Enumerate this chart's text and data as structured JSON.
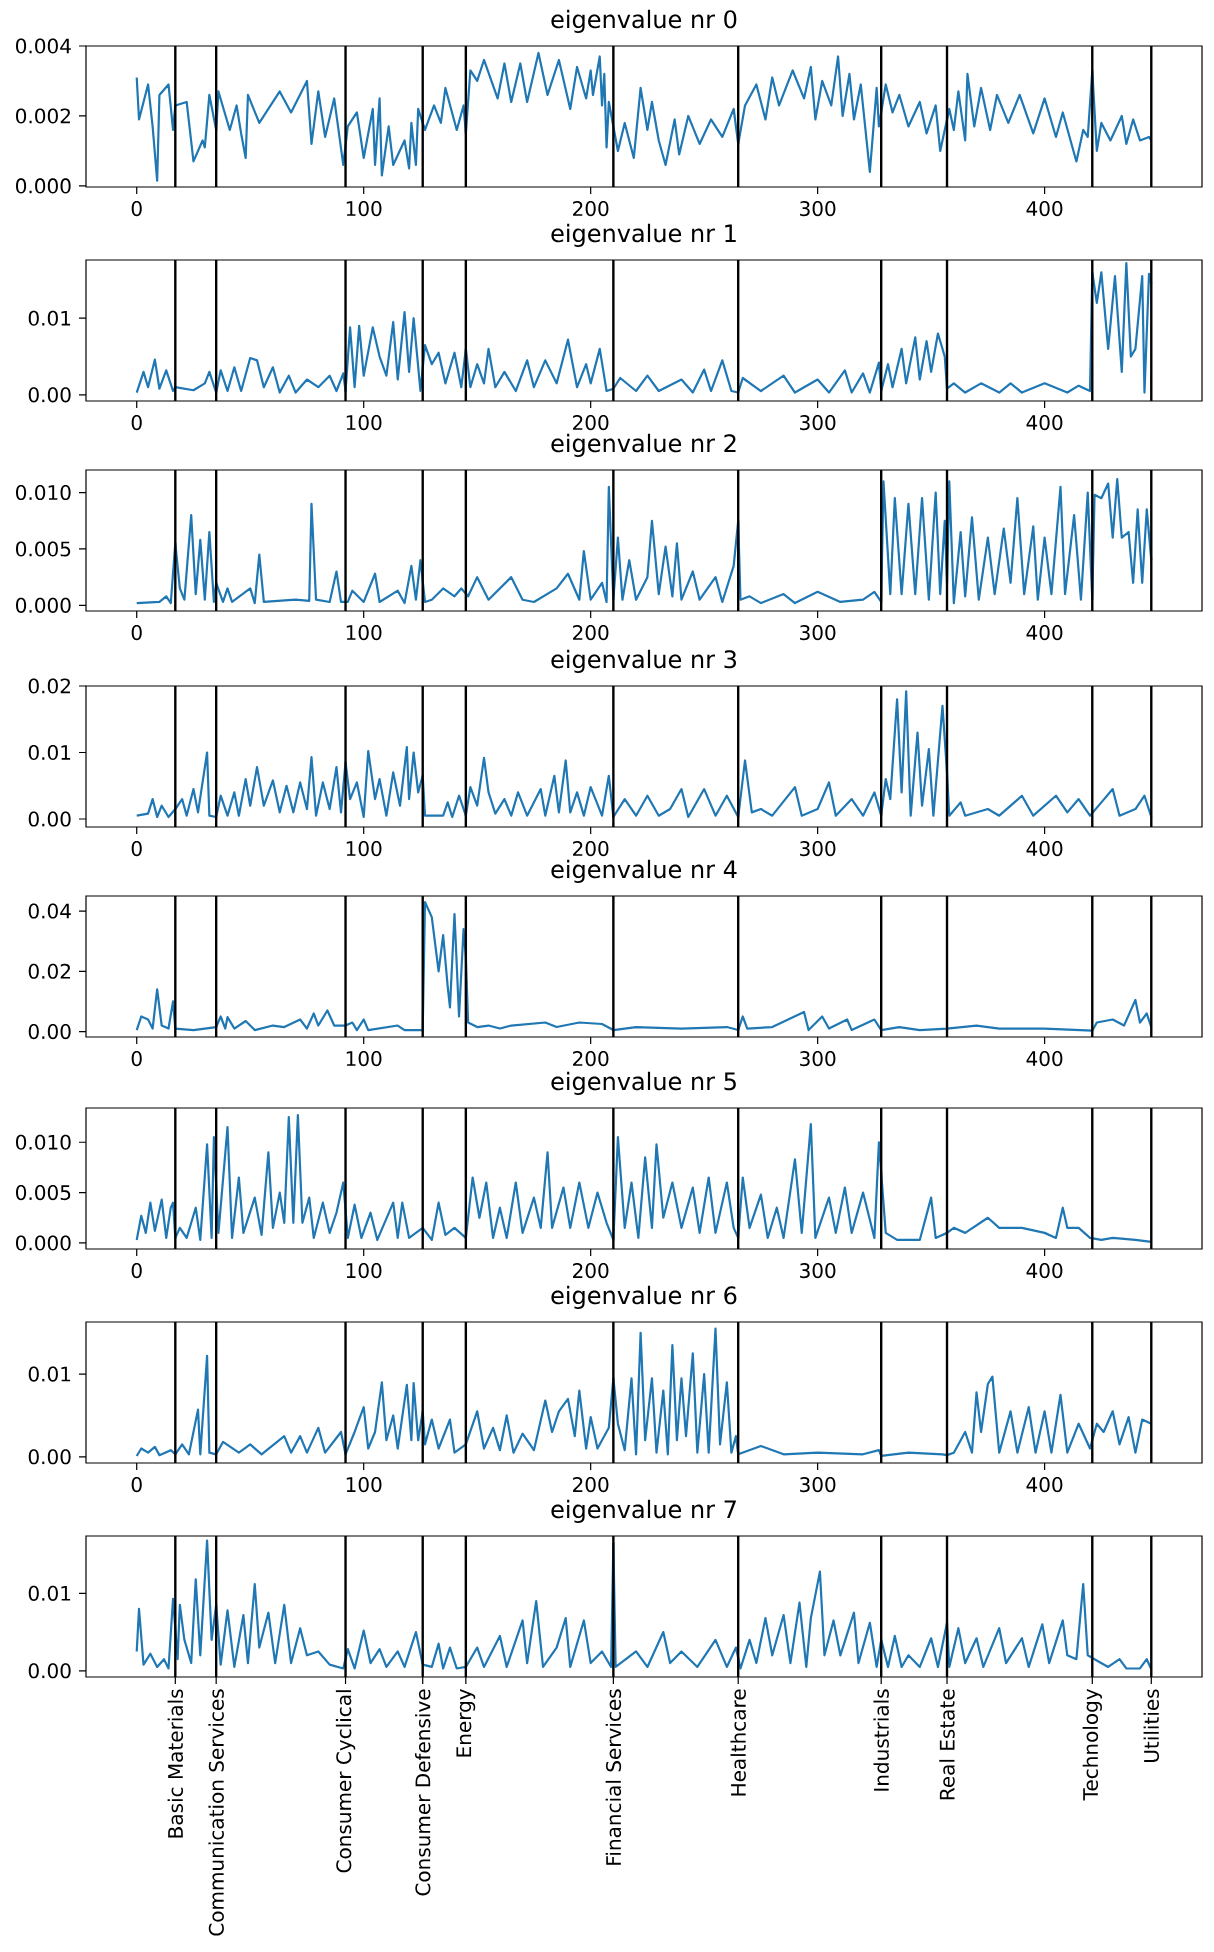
{
  "chart_data": [
    {
      "type": "line",
      "title": "eigenvalue nr 0",
      "color": "#1f77b4",
      "xlim": [
        -22.35,
        469.35
      ],
      "xticks": [
        0,
        100,
        200,
        300,
        400
      ],
      "ylim": [
        -3e-05,
        0.004
      ],
      "yticks": [
        {
          "value": 0,
          "label": "0.000"
        },
        0.002,
        0.004
      ],
      "x": [
        0,
        1,
        5,
        7,
        9,
        10,
        14,
        16,
        17,
        22,
        25,
        29,
        30,
        32,
        35,
        36,
        41,
        44,
        46,
        48,
        49,
        54,
        63,
        68,
        75,
        77,
        80,
        83,
        87,
        91,
        93,
        97,
        100,
        104,
        105,
        107,
        108,
        111,
        113,
        118,
        120,
        121,
        123,
        124,
        127,
        131,
        134,
        136,
        141,
        144,
        145,
        147,
        150,
        153,
        159,
        162,
        165,
        169,
        172,
        177,
        181,
        186,
        191,
        194,
        198,
        200,
        201,
        204,
        205,
        206,
        207,
        208,
        210,
        212,
        215,
        219,
        222,
        225,
        227,
        230,
        233,
        237,
        239,
        243,
        248,
        253,
        258,
        263,
        265,
        268,
        273,
        277,
        280,
        283,
        289,
        294,
        297,
        299,
        302,
        306,
        309,
        311,
        314,
        316,
        319,
        323,
        326,
        327,
        330,
        333,
        336,
        340,
        345,
        348,
        352,
        354,
        358,
        360,
        362,
        365,
        366,
        369,
        372,
        376,
        379,
        384,
        389,
        395,
        400,
        405,
        408,
        414,
        417,
        419,
        421,
        423,
        425,
        429,
        434,
        436,
        439,
        442,
        446,
        447
      ],
      "values": [
        0.0031,
        0.0019,
        0.0029,
        0.0017,
        0.00015,
        0.0026,
        0.0029,
        0.0016,
        0.0023,
        0.0024,
        0.0007,
        0.0013,
        0.0011,
        0.0026,
        0.0016,
        0.0027,
        0.0016,
        0.0023,
        0.0015,
        0.0008,
        0.0026,
        0.0018,
        0.0027,
        0.0021,
        0.003,
        0.0012,
        0.0027,
        0.0014,
        0.0025,
        0.0006,
        0.0017,
        0.0021,
        0.0008,
        0.0022,
        0.0006,
        0.0025,
        0.0003,
        0.0017,
        0.0006,
        0.0013,
        0.0005,
        0.0018,
        0.0006,
        0.0022,
        0.0016,
        0.0023,
        0.0018,
        0.0028,
        0.0016,
        0.0023,
        0.0015,
        0.0033,
        0.003,
        0.0036,
        0.0025,
        0.0035,
        0.0024,
        0.0035,
        0.0024,
        0.0038,
        0.0026,
        0.0036,
        0.0022,
        0.0034,
        0.0025,
        0.0033,
        0.0026,
        0.0037,
        0.0023,
        0.0032,
        0.0011,
        0.0024,
        0.0017,
        0.001,
        0.0018,
        0.0008,
        0.0028,
        0.0016,
        0.0024,
        0.0013,
        0.0006,
        0.0019,
        0.0009,
        0.002,
        0.0012,
        0.0019,
        0.0014,
        0.0022,
        0.0012,
        0.0023,
        0.0029,
        0.0019,
        0.0031,
        0.0023,
        0.0033,
        0.0025,
        0.0034,
        0.0019,
        0.003,
        0.0023,
        0.0037,
        0.002,
        0.0032,
        0.0019,
        0.0029,
        0.0004,
        0.0028,
        0.0017,
        0.0029,
        0.0021,
        0.0026,
        0.0017,
        0.0024,
        0.0015,
        0.0023,
        0.001,
        0.0022,
        0.0016,
        0.0027,
        0.0013,
        0.0032,
        0.0017,
        0.0028,
        0.0016,
        0.0026,
        0.0018,
        0.0026,
        0.0015,
        0.0025,
        0.0014,
        0.0021,
        0.0007,
        0.0016,
        0.0014,
        0.0033,
        0.001,
        0.0018,
        0.0013,
        0.002,
        0.0012,
        0.0019,
        0.0013,
        0.0014,
        0.0013
      ],
      "ref_lines": [
        {
          "axis": "x",
          "value": 17
        },
        {
          "axis": "x",
          "value": 35
        },
        {
          "axis": "x",
          "value": 92
        },
        {
          "axis": "x",
          "value": 126
        },
        {
          "axis": "x",
          "value": 145
        },
        {
          "axis": "x",
          "value": 210
        },
        {
          "axis": "x",
          "value": 265
        },
        {
          "axis": "x",
          "value": 328
        },
        {
          "axis": "x",
          "value": 357
        },
        {
          "axis": "x",
          "value": 421
        },
        {
          "axis": "x",
          "value": 447
        }
      ]
    },
    {
      "type": "line",
      "title": "eigenvalue nr 1",
      "color": "#1f77b4",
      "xlim": [
        -22.35,
        469.35
      ],
      "xticks": [
        0,
        100,
        200,
        300,
        400
      ],
      "ylim": [
        -0.0008,
        0.0176
      ],
      "yticks": [
        {
          "value": 0,
          "label": "0.00"
        },
        0.01
      ],
      "x": [
        0,
        3,
        5,
        8,
        10,
        13,
        16,
        17,
        25,
        30,
        32,
        35,
        37,
        40,
        43,
        46,
        50,
        53,
        56,
        60,
        63,
        67,
        70,
        75,
        80,
        85,
        88,
        91,
        92,
        94,
        96,
        98,
        100,
        104,
        107,
        110,
        113,
        115,
        118,
        120,
        122,
        125,
        127,
        130,
        133,
        136,
        140,
        143,
        145,
        147,
        150,
        153,
        155,
        158,
        162,
        167,
        172,
        175,
        180,
        185,
        190,
        194,
        198,
        200,
        204,
        207,
        210,
        213,
        220,
        225,
        230,
        240,
        245,
        250,
        253,
        258,
        262,
        265,
        267,
        275,
        285,
        290,
        300,
        305,
        312,
        315,
        320,
        323,
        327,
        328,
        331,
        333,
        337,
        339,
        343,
        345,
        348,
        350,
        353,
        356,
        357,
        360,
        365,
        372,
        380,
        385,
        390,
        400,
        410,
        415,
        420,
        421,
        423,
        425,
        428,
        431,
        434,
        436,
        438,
        440,
        443,
        444,
        446,
        447
      ],
      "values": [
        0.0003,
        0.003,
        0.001,
        0.0046,
        0.0008,
        0.0032,
        0.0005,
        0.001,
        0.0006,
        0.0015,
        0.003,
        0.0003,
        0.0032,
        0.0005,
        0.0036,
        0.0005,
        0.0048,
        0.0045,
        0.001,
        0.0036,
        0.0003,
        0.0025,
        0.0003,
        0.002,
        0.001,
        0.0025,
        0.0005,
        0.0028,
        0.0005,
        0.0088,
        0.001,
        0.009,
        0.0025,
        0.0088,
        0.005,
        0.0025,
        0.0095,
        0.002,
        0.0108,
        0.003,
        0.01,
        0.0005,
        0.0065,
        0.004,
        0.0055,
        0.0015,
        0.0055,
        0.001,
        0.006,
        0.001,
        0.004,
        0.0015,
        0.006,
        0.001,
        0.003,
        0.0005,
        0.0045,
        0.001,
        0.0045,
        0.0015,
        0.0072,
        0.001,
        0.004,
        0.0015,
        0.006,
        0.0005,
        0.0008,
        0.0022,
        0.0005,
        0.0025,
        0.0005,
        0.002,
        0.0003,
        0.0033,
        0.0005,
        0.0045,
        0.0005,
        0.0003,
        0.0022,
        0.0005,
        0.0025,
        0.0003,
        0.002,
        0.0003,
        0.0032,
        0.0003,
        0.0028,
        0.0003,
        0.0042,
        0.0005,
        0.004,
        0.001,
        0.006,
        0.0015,
        0.0075,
        0.002,
        0.007,
        0.003,
        0.008,
        0.005,
        0.0008,
        0.0015,
        0.0003,
        0.0015,
        0.0003,
        0.0015,
        0.0003,
        0.0015,
        0.0003,
        0.0012,
        0.0005,
        0.016,
        0.012,
        0.016,
        0.006,
        0.0155,
        0.003,
        0.0172,
        0.005,
        0.006,
        0.0155,
        0.0003,
        0.0158,
        0.0145
      ],
      "ref_lines": [
        {
          "axis": "x",
          "value": 17
        },
        {
          "axis": "x",
          "value": 35
        },
        {
          "axis": "x",
          "value": 92
        },
        {
          "axis": "x",
          "value": 126
        },
        {
          "axis": "x",
          "value": 145
        },
        {
          "axis": "x",
          "value": 210
        },
        {
          "axis": "x",
          "value": 265
        },
        {
          "axis": "x",
          "value": 328
        },
        {
          "axis": "x",
          "value": 357
        },
        {
          "axis": "x",
          "value": 421
        },
        {
          "axis": "x",
          "value": 447
        }
      ]
    },
    {
      "type": "line",
      "title": "eigenvalue nr 2",
      "color": "#1f77b4",
      "xlim": [
        -22.35,
        469.35
      ],
      "xticks": [
        0,
        100,
        200,
        300,
        400
      ],
      "ylim": [
        -0.0005,
        0.012
      ],
      "yticks": [
        {
          "value": 0,
          "label": "0.000"
        },
        0.005,
        {
          "value": 0.01,
          "label": "0.010"
        }
      ],
      "x": [
        0,
        10,
        13,
        15,
        17,
        19,
        21,
        24,
        26,
        28,
        30,
        32,
        34,
        35,
        38,
        40,
        42,
        50,
        52,
        54,
        56,
        70,
        76,
        77,
        79,
        85,
        88,
        90,
        93,
        95,
        100,
        105,
        107,
        115,
        118,
        121,
        123,
        125,
        127,
        130,
        135,
        140,
        143,
        146,
        150,
        155,
        160,
        165,
        170,
        175,
        185,
        190,
        195,
        197,
        200,
        205,
        207,
        208,
        210,
        212,
        214,
        217,
        220,
        225,
        227,
        230,
        233,
        236,
        238,
        240,
        245,
        248,
        255,
        258,
        263,
        265,
        266,
        270,
        275,
        285,
        290,
        300,
        310,
        320,
        325,
        328,
        329,
        332,
        334,
        337,
        340,
        343,
        346,
        349,
        352,
        354,
        356,
        357,
        358,
        360,
        363,
        365,
        368,
        371,
        375,
        378,
        382,
        385,
        388,
        391,
        395,
        397,
        400,
        403,
        407,
        409,
        413,
        416,
        419,
        421,
        422,
        425,
        428,
        430,
        432,
        434,
        437,
        439,
        441,
        443,
        445,
        447
      ],
      "values": [
        0.0002,
        0.0003,
        0.0008,
        0.0002,
        0.0055,
        0.0015,
        0.0005,
        0.008,
        0.001,
        0.0058,
        0.0005,
        0.0065,
        0.0003,
        0.002,
        0.0003,
        0.0015,
        0.0003,
        0.0015,
        0.0002,
        0.0045,
        0.0003,
        0.0005,
        0.0004,
        0.009,
        0.0005,
        0.0003,
        0.003,
        0.0003,
        0.0003,
        0.0013,
        0.0003,
        0.0028,
        0.0003,
        0.0013,
        0.0002,
        0.0035,
        0.0005,
        0.004,
        0.0003,
        0.0005,
        0.0015,
        0.0008,
        0.0015,
        0.0008,
        0.0025,
        0.0005,
        0.0015,
        0.0025,
        0.0005,
        0.0003,
        0.0015,
        0.0028,
        0.0005,
        0.0048,
        0.0005,
        0.002,
        0.0003,
        0.0105,
        0.0005,
        0.006,
        0.0005,
        0.004,
        0.0005,
        0.0025,
        0.0075,
        0.001,
        0.0052,
        0.0008,
        0.0055,
        0.0005,
        0.003,
        0.0005,
        0.0025,
        0.0003,
        0.0035,
        0.0075,
        0.0005,
        0.0008,
        0.0002,
        0.001,
        0.0002,
        0.0012,
        0.0003,
        0.0005,
        0.0012,
        0.0003,
        0.011,
        0.001,
        0.0095,
        0.001,
        0.009,
        0.001,
        0.0095,
        0.0005,
        0.01,
        0.001,
        0.0075,
        0.002,
        0.011,
        0.0002,
        0.0065,
        0.0008,
        0.0078,
        0.0005,
        0.006,
        0.001,
        0.0068,
        0.002,
        0.0095,
        0.001,
        0.007,
        0.0005,
        0.006,
        0.001,
        0.0105,
        0.001,
        0.008,
        0.0005,
        0.01,
        0.0005,
        0.0098,
        0.0095,
        0.0108,
        0.006,
        0.0112,
        0.006,
        0.0065,
        0.002,
        0.0085,
        0.002,
        0.0085,
        0.004
      ],
      "ref_lines": [
        {
          "axis": "x",
          "value": 17
        },
        {
          "axis": "x",
          "value": 35
        },
        {
          "axis": "x",
          "value": 92
        },
        {
          "axis": "x",
          "value": 126
        },
        {
          "axis": "x",
          "value": 145
        },
        {
          "axis": "x",
          "value": 210
        },
        {
          "axis": "x",
          "value": 265
        },
        {
          "axis": "x",
          "value": 328
        },
        {
          "axis": "x",
          "value": 357
        },
        {
          "axis": "x",
          "value": 421
        },
        {
          "axis": "x",
          "value": 447
        }
      ]
    },
    {
      "type": "line",
      "title": "eigenvalue nr 3",
      "color": "#1f77b4",
      "xlim": [
        -22.35,
        469.35
      ],
      "xticks": [
        0,
        100,
        200,
        300,
        400
      ],
      "ylim": [
        -0.0012,
        0.02
      ],
      "yticks": [
        {
          "value": 0,
          "label": "0.00"
        },
        0.01,
        {
          "value": 0.02,
          "label": "0.02"
        }
      ],
      "x": [
        0,
        5,
        7,
        9,
        11,
        14,
        17,
        20,
        22,
        25,
        27,
        31,
        32,
        35,
        37,
        40,
        43,
        45,
        48,
        50,
        53,
        56,
        60,
        63,
        66,
        69,
        72,
        75,
        77,
        79,
        82,
        85,
        88,
        90,
        92,
        94,
        97,
        100,
        102,
        105,
        107,
        110,
        113,
        116,
        119,
        120,
        122,
        124,
        126,
        127,
        135,
        137,
        139,
        142,
        145,
        147,
        150,
        153,
        155,
        158,
        162,
        165,
        168,
        172,
        178,
        180,
        184,
        186,
        189,
        191,
        194,
        197,
        200,
        205,
        208,
        210,
        215,
        220,
        225,
        230,
        235,
        240,
        243,
        250,
        255,
        260,
        265,
        268,
        271,
        275,
        280,
        290,
        293,
        300,
        305,
        308,
        315,
        320,
        325,
        328,
        330,
        332,
        335,
        337,
        339,
        341,
        344,
        346,
        349,
        351,
        355,
        357,
        358,
        363,
        365,
        375,
        380,
        390,
        395,
        405,
        410,
        415,
        420,
        425,
        430,
        433,
        440,
        444,
        447
      ],
      "values": [
        0.0005,
        0.0008,
        0.003,
        0.0003,
        0.002,
        0.0003,
        0.0015,
        0.003,
        0.0005,
        0.0045,
        0.001,
        0.01,
        0.0005,
        0.0003,
        0.0035,
        0.0005,
        0.004,
        0.0005,
        0.006,
        0.002,
        0.0078,
        0.002,
        0.0058,
        0.001,
        0.005,
        0.001,
        0.0055,
        0.0015,
        0.0093,
        0.0005,
        0.0055,
        0.0015,
        0.0078,
        0.001,
        0.0085,
        0.003,
        0.0055,
        0.0003,
        0.0102,
        0.003,
        0.006,
        0.0005,
        0.007,
        0.002,
        0.0108,
        0.003,
        0.01,
        0.004,
        0.0065,
        0.0005,
        0.0005,
        0.0025,
        0.0003,
        0.0035,
        0.0005,
        0.0048,
        0.002,
        0.0092,
        0.004,
        0.0008,
        0.003,
        0.0005,
        0.004,
        0.0005,
        0.0045,
        0.0005,
        0.0065,
        0.001,
        0.0088,
        0.001,
        0.004,
        0.0005,
        0.0048,
        0.0005,
        0.0065,
        0.0003,
        0.003,
        0.0005,
        0.0035,
        0.0005,
        0.0015,
        0.0045,
        0.0003,
        0.0045,
        0.0005,
        0.0035,
        0.0003,
        0.0088,
        0.001,
        0.0015,
        0.0005,
        0.0048,
        0.0005,
        0.0015,
        0.0055,
        0.0005,
        0.003,
        0.0005,
        0.004,
        0.0005,
        0.006,
        0.003,
        0.018,
        0.004,
        0.0192,
        0.0005,
        0.013,
        0.002,
        0.0105,
        0.0005,
        0.017,
        0.007,
        0.0005,
        0.0025,
        0.0005,
        0.0015,
        0.0005,
        0.0035,
        0.0005,
        0.0035,
        0.001,
        0.003,
        0.0005,
        0.0025,
        0.0045,
        0.0005,
        0.0015,
        0.0035,
        0.0003
      ],
      "ref_lines": [
        {
          "axis": "x",
          "value": 17
        },
        {
          "axis": "x",
          "value": 35
        },
        {
          "axis": "x",
          "value": 92
        },
        {
          "axis": "x",
          "value": 126
        },
        {
          "axis": "x",
          "value": 145
        },
        {
          "axis": "x",
          "value": 210
        },
        {
          "axis": "x",
          "value": 265
        },
        {
          "axis": "x",
          "value": 328
        },
        {
          "axis": "x",
          "value": 357
        },
        {
          "axis": "x",
          "value": 421
        },
        {
          "axis": "x",
          "value": 447
        }
      ]
    },
    {
      "type": "line",
      "title": "eigenvalue nr 4",
      "color": "#1f77b4",
      "xlim": [
        -22.35,
        469.35
      ],
      "xticks": [
        0,
        100,
        200,
        300,
        400
      ],
      "ylim": [
        -0.0018,
        0.045
      ],
      "yticks": [
        {
          "value": 0,
          "label": "0.00"
        },
        0.02,
        0.04
      ],
      "x": [
        0,
        2,
        5,
        7,
        9,
        11,
        14,
        16,
        17,
        25,
        35,
        37,
        39,
        40,
        43,
        48,
        52,
        60,
        65,
        72,
        75,
        78,
        80,
        84,
        87,
        92,
        95,
        97,
        100,
        102,
        115,
        118,
        126,
        127,
        130,
        133,
        135,
        137,
        138,
        140,
        142,
        144,
        145,
        146,
        150,
        155,
        160,
        165,
        180,
        185,
        195,
        205,
        210,
        220,
        240,
        260,
        265,
        267,
        269,
        280,
        294,
        296,
        302,
        305,
        313,
        315,
        325,
        328,
        336,
        345,
        357,
        370,
        380,
        400,
        421,
        423,
        430,
        435,
        440,
        442,
        445,
        447
      ],
      "values": [
        0.0005,
        0.005,
        0.004,
        0.001,
        0.014,
        0.002,
        0.001,
        0.01,
        0.001,
        0.0005,
        0.0015,
        0.005,
        0.001,
        0.0048,
        0.001,
        0.0035,
        0.0005,
        0.002,
        0.0015,
        0.004,
        0.001,
        0.006,
        0.002,
        0.007,
        0.002,
        0.002,
        0.003,
        0.0005,
        0.004,
        0.0005,
        0.002,
        0.0005,
        0.0005,
        0.043,
        0.038,
        0.02,
        0.032,
        0.015,
        0.008,
        0.039,
        0.005,
        0.034,
        0.025,
        0.003,
        0.0015,
        0.002,
        0.001,
        0.002,
        0.003,
        0.0015,
        0.003,
        0.0025,
        0.0005,
        0.0015,
        0.001,
        0.0015,
        0.0005,
        0.005,
        0.001,
        0.0015,
        0.0065,
        0.0005,
        0.005,
        0.001,
        0.004,
        0.0005,
        0.004,
        0.0005,
        0.0015,
        0.0005,
        0.001,
        0.002,
        0.001,
        0.001,
        0.0003,
        0.003,
        0.004,
        0.002,
        0.0105,
        0.003,
        0.006,
        0.0015
      ],
      "ref_lines": [
        {
          "axis": "x",
          "value": 17
        },
        {
          "axis": "x",
          "value": 35
        },
        {
          "axis": "x",
          "value": 92
        },
        {
          "axis": "x",
          "value": 126
        },
        {
          "axis": "x",
          "value": 145
        },
        {
          "axis": "x",
          "value": 210
        },
        {
          "axis": "x",
          "value": 265
        },
        {
          "axis": "x",
          "value": 328
        },
        {
          "axis": "x",
          "value": 357
        },
        {
          "axis": "x",
          "value": 421
        },
        {
          "axis": "x",
          "value": 447
        }
      ]
    },
    {
      "type": "line",
      "title": "eigenvalue nr 5",
      "color": "#1f77b4",
      "xlim": [
        -22.35,
        469.35
      ],
      "xticks": [
        0,
        100,
        200,
        300,
        400
      ],
      "ylim": [
        -0.0006,
        0.0134
      ],
      "yticks": [
        {
          "value": 0,
          "label": "0.000"
        },
        0.005,
        {
          "value": 0.01,
          "label": "0.010"
        }
      ],
      "x": [
        0,
        2,
        4,
        6,
        8,
        11,
        13,
        15,
        16,
        17,
        19,
        22,
        26,
        28,
        31,
        33,
        34,
        36,
        40,
        42,
        45,
        47,
        52,
        55,
        58,
        60,
        63,
        65,
        67,
        69,
        71,
        73,
        76,
        78,
        82,
        85,
        88,
        91,
        93,
        96,
        99,
        103,
        106,
        113,
        115,
        117,
        120,
        126,
        130,
        133,
        136,
        140,
        145,
        148,
        151,
        154,
        157,
        160,
        163,
        167,
        170,
        175,
        178,
        181,
        183,
        188,
        191,
        195,
        199,
        203,
        207,
        210,
        212,
        215,
        218,
        221,
        224,
        227,
        229,
        232,
        236,
        240,
        245,
        248,
        252,
        255,
        260,
        263,
        265,
        267,
        270,
        275,
        278,
        282,
        285,
        290,
        293,
        297,
        299,
        305,
        308,
        312,
        315,
        320,
        325,
        327,
        330,
        335,
        345,
        350,
        352,
        357,
        360,
        365,
        375,
        380,
        390,
        400,
        405,
        408,
        410,
        415,
        420,
        425,
        430,
        440,
        447
      ],
      "values": [
        0.0003,
        0.0027,
        0.001,
        0.004,
        0.0012,
        0.0043,
        0.0005,
        0.0035,
        0.004,
        0.0005,
        0.0015,
        0.0005,
        0.0035,
        0.0003,
        0.0098,
        0.0005,
        0.0105,
        0.001,
        0.0115,
        0.0005,
        0.0065,
        0.001,
        0.0045,
        0.0008,
        0.009,
        0.0015,
        0.005,
        0.002,
        0.0125,
        0.002,
        0.0127,
        0.002,
        0.0045,
        0.0005,
        0.004,
        0.001,
        0.003,
        0.006,
        0.0005,
        0.0038,
        0.0005,
        0.003,
        0.0003,
        0.004,
        0.0005,
        0.004,
        0.0005,
        0.0015,
        0.0003,
        0.004,
        0.0008,
        0.0015,
        0.0005,
        0.0065,
        0.0025,
        0.006,
        0.0005,
        0.0035,
        0.0005,
        0.006,
        0.001,
        0.0045,
        0.0015,
        0.009,
        0.0015,
        0.0055,
        0.0015,
        0.006,
        0.0015,
        0.005,
        0.002,
        0.0003,
        0.0105,
        0.0015,
        0.006,
        0.0005,
        0.0085,
        0.0015,
        0.0098,
        0.0025,
        0.006,
        0.0015,
        0.0055,
        0.001,
        0.0065,
        0.001,
        0.006,
        0.0015,
        0.0005,
        0.0065,
        0.0015,
        0.0048,
        0.0005,
        0.0035,
        0.0005,
        0.0083,
        0.001,
        0.0118,
        0.0005,
        0.0045,
        0.001,
        0.0055,
        0.001,
        0.005,
        0.0005,
        0.01,
        0.001,
        0.0003,
        0.0003,
        0.0045,
        0.0005,
        0.001,
        0.0015,
        0.001,
        0.0025,
        0.0015,
        0.0015,
        0.001,
        0.0005,
        0.0035,
        0.0015,
        0.0015,
        0.0005,
        0.0003,
        0.0005,
        0.0003,
        0.0001
      ],
      "ref_lines": [
        {
          "axis": "x",
          "value": 17
        },
        {
          "axis": "x",
          "value": 35
        },
        {
          "axis": "x",
          "value": 92
        },
        {
          "axis": "x",
          "value": 126
        },
        {
          "axis": "x",
          "value": 145
        },
        {
          "axis": "x",
          "value": 210
        },
        {
          "axis": "x",
          "value": 265
        },
        {
          "axis": "x",
          "value": 328
        },
        {
          "axis": "x",
          "value": 357
        },
        {
          "axis": "x",
          "value": 421
        },
        {
          "axis": "x",
          "value": 447
        }
      ]
    },
    {
      "type": "line",
      "title": "eigenvalue nr 6",
      "color": "#1f77b4",
      "xlim": [
        -22.35,
        469.35
      ],
      "xticks": [
        0,
        100,
        200,
        300,
        400
      ],
      "ylim": [
        -0.00075,
        0.0163
      ],
      "yticks": [
        {
          "value": 0,
          "label": "0.00"
        },
        0.01
      ],
      "x": [
        0,
        2,
        5,
        8,
        10,
        15,
        17,
        20,
        23,
        27,
        28,
        31,
        32,
        35,
        38,
        45,
        50,
        55,
        65,
        68,
        72,
        75,
        80,
        83,
        90,
        92,
        96,
        100,
        102,
        105,
        108,
        110,
        113,
        115,
        119,
        121,
        122,
        124,
        126,
        127,
        130,
        133,
        138,
        140,
        145,
        150,
        153,
        157,
        160,
        163,
        166,
        170,
        175,
        180,
        183,
        186,
        190,
        193,
        195,
        198,
        200,
        203,
        208,
        210,
        212,
        215,
        218,
        220,
        222,
        224,
        227,
        229,
        232,
        234,
        236,
        238,
        240,
        242,
        245,
        247,
        250,
        252,
        255,
        257,
        260,
        262,
        264,
        265,
        275,
        285,
        300,
        320,
        327,
        328,
        340,
        355,
        357,
        360,
        365,
        368,
        370,
        372,
        375,
        377,
        380,
        385,
        388,
        393,
        396,
        400,
        403,
        407,
        410,
        415,
        420,
        423,
        426,
        430,
        433,
        437,
        440,
        443,
        447
      ],
      "values": [
        0.0001,
        0.001,
        0.0005,
        0.0012,
        0.0002,
        0.0008,
        0.0003,
        0.0015,
        0.0003,
        0.0057,
        0.0003,
        0.0122,
        0.0005,
        0.0003,
        0.0018,
        0.0005,
        0.0015,
        0.0003,
        0.0025,
        0.0005,
        0.0025,
        0.0005,
        0.0035,
        0.0005,
        0.003,
        0.0003,
        0.003,
        0.006,
        0.001,
        0.003,
        0.009,
        0.002,
        0.005,
        0.001,
        0.0087,
        0.002,
        0.0089,
        0.002,
        0.0055,
        0.0015,
        0.0045,
        0.001,
        0.0045,
        0.0005,
        0.0015,
        0.0055,
        0.001,
        0.0035,
        0.0008,
        0.005,
        0.0005,
        0.0028,
        0.0008,
        0.0068,
        0.003,
        0.0055,
        0.007,
        0.0025,
        0.008,
        0.001,
        0.0048,
        0.001,
        0.0035,
        0.0095,
        0.004,
        0.0008,
        0.0095,
        0.0003,
        0.015,
        0.002,
        0.0095,
        0.0005,
        0.008,
        0.0003,
        0.0135,
        0.002,
        0.0095,
        0.0025,
        0.0125,
        0.0005,
        0.01,
        0.0005,
        0.0155,
        0.0015,
        0.009,
        0.0005,
        0.0025,
        0.0003,
        0.0013,
        0.0003,
        0.0005,
        0.0003,
        0.0008,
        0.0001,
        0.0005,
        0.0003,
        0.0002,
        0.0005,
        0.003,
        0.0005,
        0.0078,
        0.003,
        0.0088,
        0.0097,
        0.0005,
        0.0055,
        0.0005,
        0.006,
        0.0005,
        0.0055,
        0.0005,
        0.0075,
        0.0005,
        0.004,
        0.001,
        0.004,
        0.003,
        0.0055,
        0.0015,
        0.0048,
        0.0005,
        0.0045,
        0.004
      ],
      "ref_lines": [
        {
          "axis": "x",
          "value": 17
        },
        {
          "axis": "x",
          "value": 35
        },
        {
          "axis": "x",
          "value": 92
        },
        {
          "axis": "x",
          "value": 126
        },
        {
          "axis": "x",
          "value": 145
        },
        {
          "axis": "x",
          "value": 210
        },
        {
          "axis": "x",
          "value": 265
        },
        {
          "axis": "x",
          "value": 328
        },
        {
          "axis": "x",
          "value": 357
        },
        {
          "axis": "x",
          "value": 421
        },
        {
          "axis": "x",
          "value": 447
        }
      ]
    },
    {
      "type": "line",
      "title": "eigenvalue nr 7",
      "color": "#1f77b4",
      "xlim": [
        -22.35,
        469.35
      ],
      "tick_labels": "y",
      "annotations": [
        "Basic Materials",
        "Communication Services",
        "Consumer Cyclical",
        "Consumer Defensive",
        "Energy",
        "Financial Services",
        "Healthcare",
        "Industrials",
        "Real Estate",
        "Technology",
        "Utilities"
      ],
      "ylim": [
        -0.0008,
        0.0174
      ],
      "yticks": [
        {
          "value": 0,
          "label": "0.00"
        },
        0.01
      ],
      "x": [
        0,
        1,
        3,
        6,
        9,
        12,
        14,
        16,
        18,
        19,
        21,
        24,
        26,
        28,
        31,
        33,
        35,
        37,
        40,
        43,
        47,
        49,
        52,
        54,
        58,
        61,
        65,
        68,
        72,
        75,
        80,
        85,
        91,
        93,
        96,
        100,
        103,
        107,
        110,
        115,
        118,
        123,
        126,
        130,
        133,
        135,
        138,
        141,
        145,
        150,
        153,
        160,
        163,
        170,
        172,
        176,
        179,
        185,
        189,
        191,
        197,
        200,
        205,
        209,
        210,
        211,
        220,
        225,
        232,
        235,
        240,
        247,
        255,
        260,
        264,
        266,
        270,
        273,
        277,
        280,
        285,
        288,
        292,
        295,
        297,
        301,
        303,
        307,
        310,
        316,
        318,
        323,
        326,
        328,
        331,
        334,
        337,
        340,
        345,
        350,
        353,
        357,
        358,
        362,
        365,
        370,
        373,
        380,
        383,
        390,
        393,
        399,
        402,
        408,
        410,
        414,
        417,
        419,
        422,
        428,
        433,
        436,
        442,
        445,
        447
      ],
      "values": [
        0.0025,
        0.008,
        0.0008,
        0.0022,
        0.0005,
        0.0015,
        0.0003,
        0.0093,
        0.0015,
        0.0085,
        0.004,
        0.001,
        0.0118,
        0.002,
        0.0168,
        0.004,
        0.0085,
        0.0008,
        0.0078,
        0.0005,
        0.0072,
        0.001,
        0.0112,
        0.003,
        0.0075,
        0.001,
        0.0085,
        0.001,
        0.0055,
        0.002,
        0.0025,
        0.0008,
        0.0003,
        0.0028,
        0.0003,
        0.0052,
        0.001,
        0.0028,
        0.0005,
        0.0025,
        0.0005,
        0.005,
        0.0008,
        0.0005,
        0.0035,
        0.0003,
        0.003,
        0.0003,
        0.0005,
        0.003,
        0.0005,
        0.0045,
        0.0005,
        0.0065,
        0.001,
        0.009,
        0.0005,
        0.003,
        0.0068,
        0.0005,
        0.0065,
        0.001,
        0.0025,
        0.0005,
        0.0165,
        0.0005,
        0.0025,
        0.0005,
        0.005,
        0.001,
        0.0025,
        0.0005,
        0.004,
        0.0005,
        0.003,
        0.0003,
        0.004,
        0.001,
        0.0068,
        0.002,
        0.0072,
        0.001,
        0.0088,
        0.0005,
        0.0068,
        0.0128,
        0.002,
        0.0065,
        0.002,
        0.0075,
        0.001,
        0.0062,
        0.0005,
        0.004,
        0.0005,
        0.0045,
        0.0005,
        0.002,
        0.0005,
        0.0042,
        0.0005,
        0.0062,
        0.0005,
        0.0055,
        0.001,
        0.0042,
        0.0005,
        0.0055,
        0.001,
        0.0042,
        0.0005,
        0.006,
        0.001,
        0.0065,
        0.002,
        0.0015,
        0.0112,
        0.002,
        0.0015,
        0.0005,
        0.0015,
        0.0003,
        0.0003,
        0.0015,
        0.0002
      ],
      "ref_lines": [
        {
          "axis": "x",
          "value": 17
        },
        {
          "axis": "x",
          "value": 35
        },
        {
          "axis": "x",
          "value": 92
        },
        {
          "axis": "x",
          "value": 126
        },
        {
          "axis": "x",
          "value": 145
        },
        {
          "axis": "x",
          "value": 210
        },
        {
          "axis": "x",
          "value": 265
        },
        {
          "axis": "x",
          "value": 328
        },
        {
          "axis": "x",
          "value": 357
        },
        {
          "axis": "x",
          "value": 421
        },
        {
          "axis": "x",
          "value": 447
        }
      ]
    }
  ]
}
